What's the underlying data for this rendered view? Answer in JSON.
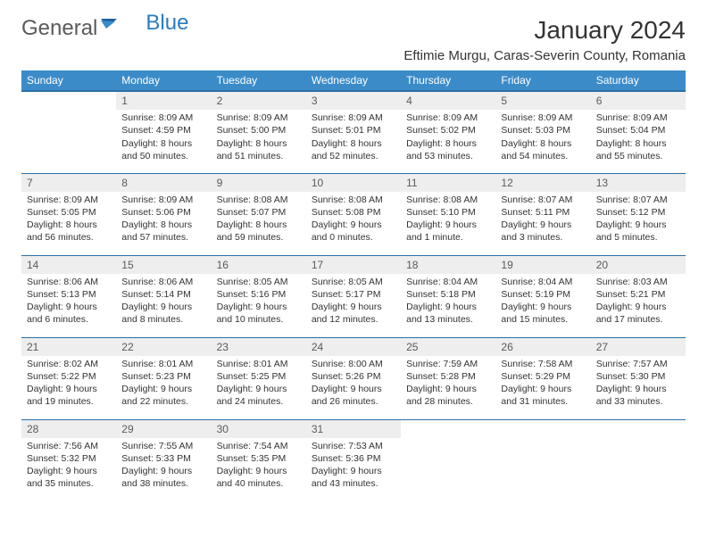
{
  "brand": {
    "part1": "General",
    "part2": "Blue"
  },
  "title": "January 2024",
  "location": "Eftimie Murgu, Caras-Severin County, Romania",
  "colors": {
    "header_bg": "#3b8bc9",
    "header_text": "#ffffff",
    "row_border": "#2b6fa3",
    "daynum_bg": "#eeeeee",
    "daynum_text": "#5a5a5a",
    "body_text": "#333333",
    "logo_gray": "#5a5a5a",
    "logo_blue": "#2b7bbf"
  },
  "day_labels": [
    "Sunday",
    "Monday",
    "Tuesday",
    "Wednesday",
    "Thursday",
    "Friday",
    "Saturday"
  ],
  "weeks": [
    [
      {
        "num": "",
        "sunrise": "",
        "sunset": "",
        "daylight": ""
      },
      {
        "num": "1",
        "sunrise": "Sunrise: 8:09 AM",
        "sunset": "Sunset: 4:59 PM",
        "daylight": "Daylight: 8 hours and 50 minutes."
      },
      {
        "num": "2",
        "sunrise": "Sunrise: 8:09 AM",
        "sunset": "Sunset: 5:00 PM",
        "daylight": "Daylight: 8 hours and 51 minutes."
      },
      {
        "num": "3",
        "sunrise": "Sunrise: 8:09 AM",
        "sunset": "Sunset: 5:01 PM",
        "daylight": "Daylight: 8 hours and 52 minutes."
      },
      {
        "num": "4",
        "sunrise": "Sunrise: 8:09 AM",
        "sunset": "Sunset: 5:02 PM",
        "daylight": "Daylight: 8 hours and 53 minutes."
      },
      {
        "num": "5",
        "sunrise": "Sunrise: 8:09 AM",
        "sunset": "Sunset: 5:03 PM",
        "daylight": "Daylight: 8 hours and 54 minutes."
      },
      {
        "num": "6",
        "sunrise": "Sunrise: 8:09 AM",
        "sunset": "Sunset: 5:04 PM",
        "daylight": "Daylight: 8 hours and 55 minutes."
      }
    ],
    [
      {
        "num": "7",
        "sunrise": "Sunrise: 8:09 AM",
        "sunset": "Sunset: 5:05 PM",
        "daylight": "Daylight: 8 hours and 56 minutes."
      },
      {
        "num": "8",
        "sunrise": "Sunrise: 8:09 AM",
        "sunset": "Sunset: 5:06 PM",
        "daylight": "Daylight: 8 hours and 57 minutes."
      },
      {
        "num": "9",
        "sunrise": "Sunrise: 8:08 AM",
        "sunset": "Sunset: 5:07 PM",
        "daylight": "Daylight: 8 hours and 59 minutes."
      },
      {
        "num": "10",
        "sunrise": "Sunrise: 8:08 AM",
        "sunset": "Sunset: 5:08 PM",
        "daylight": "Daylight: 9 hours and 0 minutes."
      },
      {
        "num": "11",
        "sunrise": "Sunrise: 8:08 AM",
        "sunset": "Sunset: 5:10 PM",
        "daylight": "Daylight: 9 hours and 1 minute."
      },
      {
        "num": "12",
        "sunrise": "Sunrise: 8:07 AM",
        "sunset": "Sunset: 5:11 PM",
        "daylight": "Daylight: 9 hours and 3 minutes."
      },
      {
        "num": "13",
        "sunrise": "Sunrise: 8:07 AM",
        "sunset": "Sunset: 5:12 PM",
        "daylight": "Daylight: 9 hours and 5 minutes."
      }
    ],
    [
      {
        "num": "14",
        "sunrise": "Sunrise: 8:06 AM",
        "sunset": "Sunset: 5:13 PM",
        "daylight": "Daylight: 9 hours and 6 minutes."
      },
      {
        "num": "15",
        "sunrise": "Sunrise: 8:06 AM",
        "sunset": "Sunset: 5:14 PM",
        "daylight": "Daylight: 9 hours and 8 minutes."
      },
      {
        "num": "16",
        "sunrise": "Sunrise: 8:05 AM",
        "sunset": "Sunset: 5:16 PM",
        "daylight": "Daylight: 9 hours and 10 minutes."
      },
      {
        "num": "17",
        "sunrise": "Sunrise: 8:05 AM",
        "sunset": "Sunset: 5:17 PM",
        "daylight": "Daylight: 9 hours and 12 minutes."
      },
      {
        "num": "18",
        "sunrise": "Sunrise: 8:04 AM",
        "sunset": "Sunset: 5:18 PM",
        "daylight": "Daylight: 9 hours and 13 minutes."
      },
      {
        "num": "19",
        "sunrise": "Sunrise: 8:04 AM",
        "sunset": "Sunset: 5:19 PM",
        "daylight": "Daylight: 9 hours and 15 minutes."
      },
      {
        "num": "20",
        "sunrise": "Sunrise: 8:03 AM",
        "sunset": "Sunset: 5:21 PM",
        "daylight": "Daylight: 9 hours and 17 minutes."
      }
    ],
    [
      {
        "num": "21",
        "sunrise": "Sunrise: 8:02 AM",
        "sunset": "Sunset: 5:22 PM",
        "daylight": "Daylight: 9 hours and 19 minutes."
      },
      {
        "num": "22",
        "sunrise": "Sunrise: 8:01 AM",
        "sunset": "Sunset: 5:23 PM",
        "daylight": "Daylight: 9 hours and 22 minutes."
      },
      {
        "num": "23",
        "sunrise": "Sunrise: 8:01 AM",
        "sunset": "Sunset: 5:25 PM",
        "daylight": "Daylight: 9 hours and 24 minutes."
      },
      {
        "num": "24",
        "sunrise": "Sunrise: 8:00 AM",
        "sunset": "Sunset: 5:26 PM",
        "daylight": "Daylight: 9 hours and 26 minutes."
      },
      {
        "num": "25",
        "sunrise": "Sunrise: 7:59 AM",
        "sunset": "Sunset: 5:28 PM",
        "daylight": "Daylight: 9 hours and 28 minutes."
      },
      {
        "num": "26",
        "sunrise": "Sunrise: 7:58 AM",
        "sunset": "Sunset: 5:29 PM",
        "daylight": "Daylight: 9 hours and 31 minutes."
      },
      {
        "num": "27",
        "sunrise": "Sunrise: 7:57 AM",
        "sunset": "Sunset: 5:30 PM",
        "daylight": "Daylight: 9 hours and 33 minutes."
      }
    ],
    [
      {
        "num": "28",
        "sunrise": "Sunrise: 7:56 AM",
        "sunset": "Sunset: 5:32 PM",
        "daylight": "Daylight: 9 hours and 35 minutes."
      },
      {
        "num": "29",
        "sunrise": "Sunrise: 7:55 AM",
        "sunset": "Sunset: 5:33 PM",
        "daylight": "Daylight: 9 hours and 38 minutes."
      },
      {
        "num": "30",
        "sunrise": "Sunrise: 7:54 AM",
        "sunset": "Sunset: 5:35 PM",
        "daylight": "Daylight: 9 hours and 40 minutes."
      },
      {
        "num": "31",
        "sunrise": "Sunrise: 7:53 AM",
        "sunset": "Sunset: 5:36 PM",
        "daylight": "Daylight: 9 hours and 43 minutes."
      },
      {
        "num": "",
        "sunrise": "",
        "sunset": "",
        "daylight": ""
      },
      {
        "num": "",
        "sunrise": "",
        "sunset": "",
        "daylight": ""
      },
      {
        "num": "",
        "sunrise": "",
        "sunset": "",
        "daylight": ""
      }
    ]
  ]
}
